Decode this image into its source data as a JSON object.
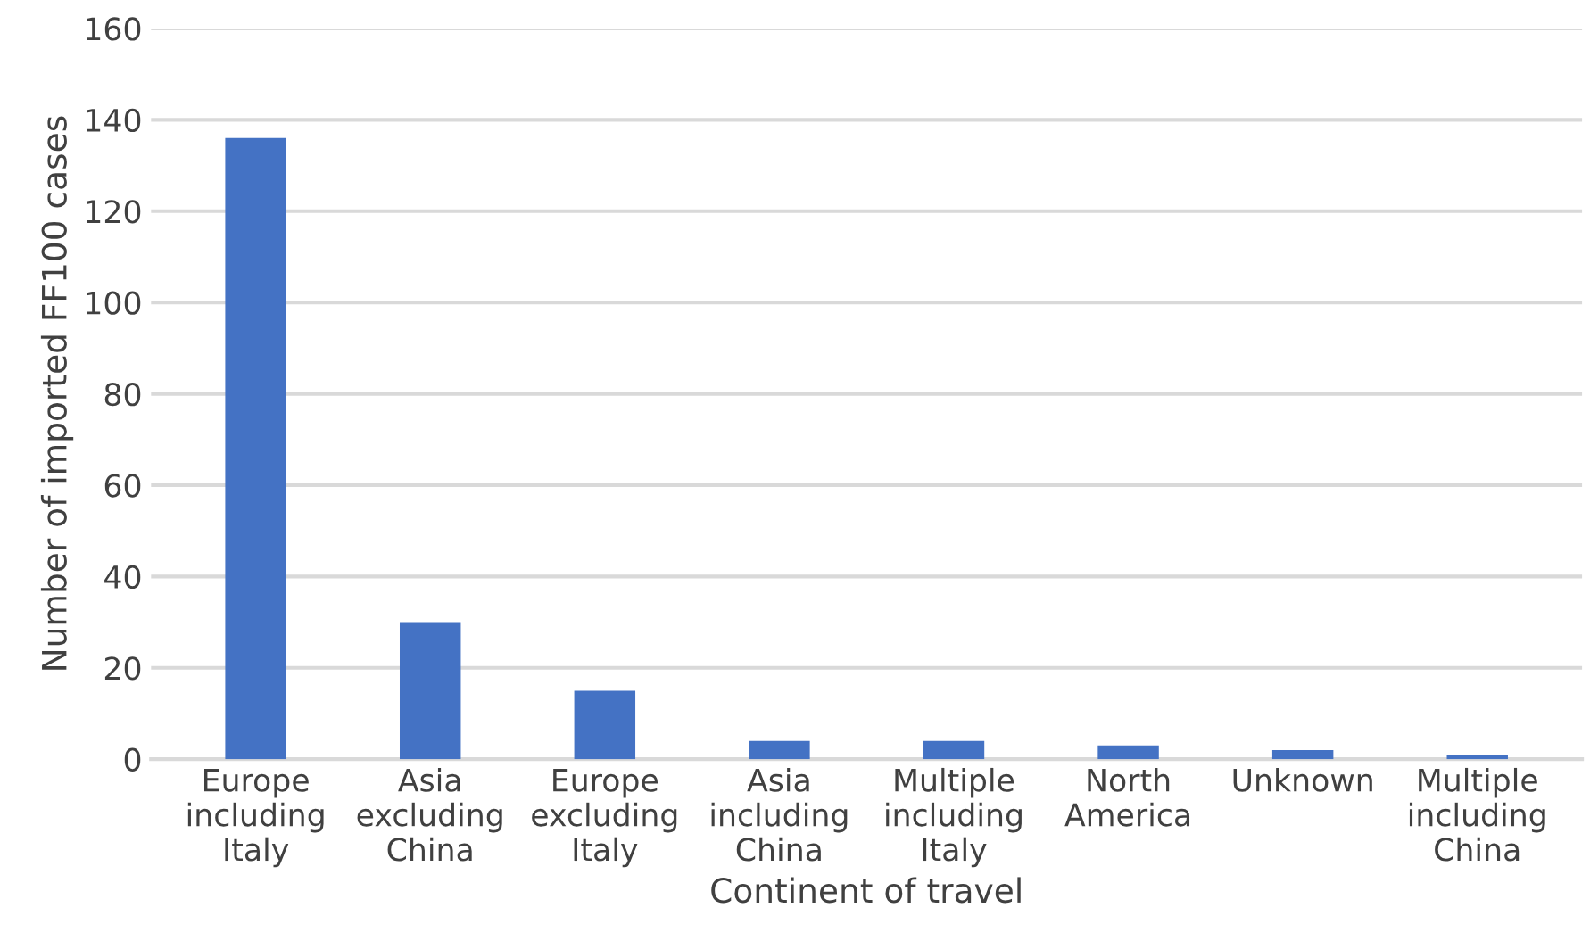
{
  "chart_data": {
    "type": "bar",
    "xlabel": "Continent of travel",
    "ylabel": "Number of imported FF100 cases",
    "categories": [
      "Europe\nincluding\nItaly",
      "Asia\nexcluding\nChina",
      "Europe\nexcluding\nItaly",
      "Asia\nincluding\nChina",
      "Multiple\nincluding\nItaly",
      "North\nAmerica",
      "Unknown",
      "Multiple\nincluding\nChina"
    ],
    "values": [
      136,
      30,
      15,
      4,
      4,
      3,
      2,
      1
    ],
    "color": "#4472c4",
    "ylim": [
      0,
      160
    ],
    "yticks": [
      0,
      20,
      40,
      60,
      80,
      100,
      120,
      140,
      160
    ],
    "grid": "y",
    "legend": false
  }
}
